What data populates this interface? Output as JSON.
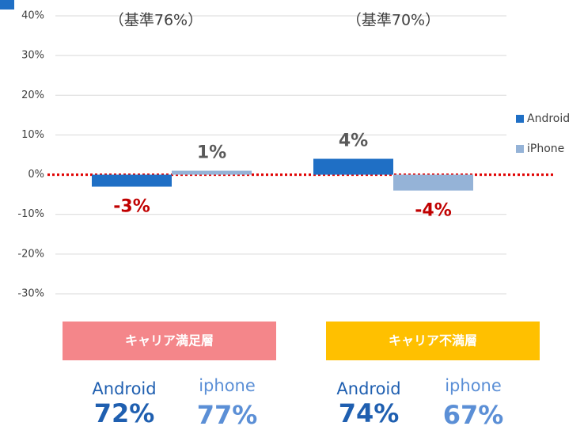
{
  "chart_data": {
    "type": "bar",
    "categories": [
      "キャリア満足層",
      "キャリア不満層"
    ],
    "category_colors": [
      "#f4868a",
      "#ffc000"
    ],
    "series": [
      {
        "name": "Android",
        "color": "#1f6fc5",
        "values": [
          -3,
          4
        ],
        "value_labels": [
          "-3%",
          "4%"
        ]
      },
      {
        "name": "iPhone",
        "color": "#95b3d7",
        "values": [
          1,
          -4
        ],
        "value_labels": [
          "1%",
          "-4%"
        ]
      }
    ],
    "ylim": [
      -30,
      40
    ],
    "yticks": [
      {
        "value": 40,
        "label": "40%"
      },
      {
        "value": 30,
        "label": "30%"
      },
      {
        "value": 20,
        "label": "20%"
      },
      {
        "value": 10,
        "label": "10%"
      },
      {
        "value": 0,
        "label": "0%"
      },
      {
        "value": -10,
        "label": "-10%"
      },
      {
        "value": -20,
        "label": "-20%"
      },
      {
        "value": -30,
        "label": "-30%"
      }
    ],
    "grid": true,
    "legend": "right",
    "annotations": [
      "（基準76%）",
      "（基準70%）"
    ],
    "footer": [
      [
        {
          "label": "Android",
          "value": "72%"
        },
        {
          "label": "iphone",
          "value": "77%"
        }
      ],
      [
        {
          "label": "Android",
          "value": "74%"
        },
        {
          "label": "iphone",
          "value": "67%"
        }
      ]
    ]
  }
}
